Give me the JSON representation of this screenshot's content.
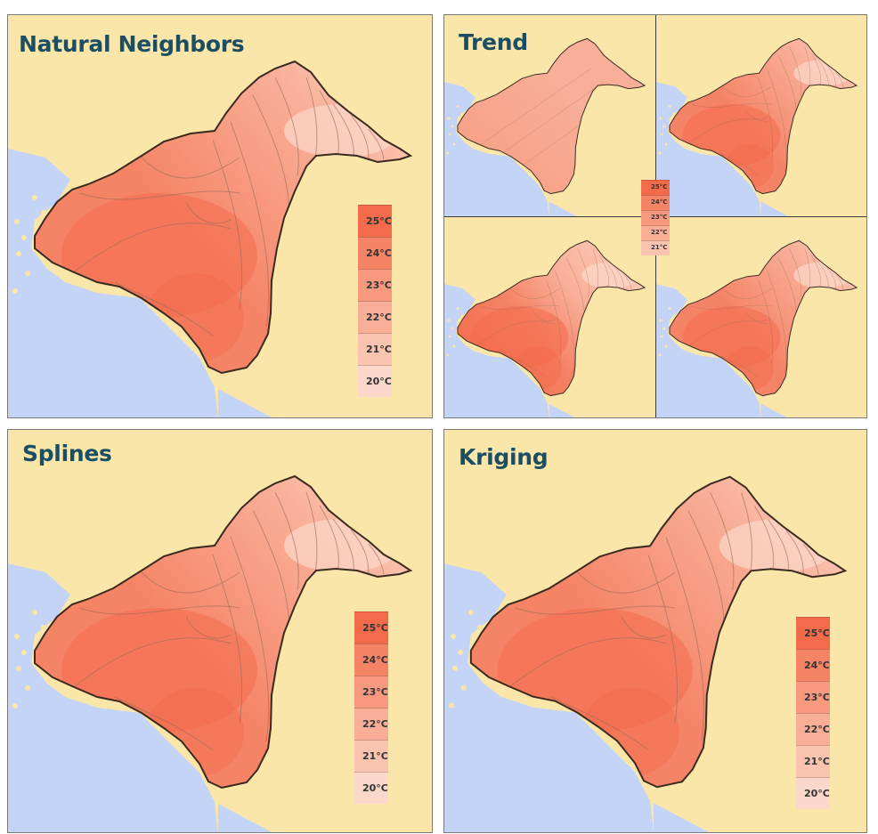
{
  "colors": {
    "sea": "#c4d4f7",
    "land": "#fbe6a9",
    "title": "#1c4e63",
    "border": "#3a2a20",
    "t25": "#f46b4c",
    "t24": "#f58366",
    "t23": "#f7997e",
    "t22": "#f9ae97",
    "t21": "#fbc4b1",
    "t20": "#fcd8ca"
  },
  "panels": {
    "natural_neighbors": {
      "title": "Natural Neighbors"
    },
    "trend": {
      "title": "Trend"
    },
    "splines": {
      "title": "Splines"
    },
    "kriging": {
      "title": "Kriging"
    }
  },
  "legend_large": {
    "labels": [
      "25°C",
      "24°C",
      "23°C",
      "22°C",
      "21°C",
      "20°C"
    ]
  },
  "legend_small": {
    "labels": [
      "25°C",
      "24°C",
      "23°C",
      "22°C",
      "21°C"
    ]
  }
}
